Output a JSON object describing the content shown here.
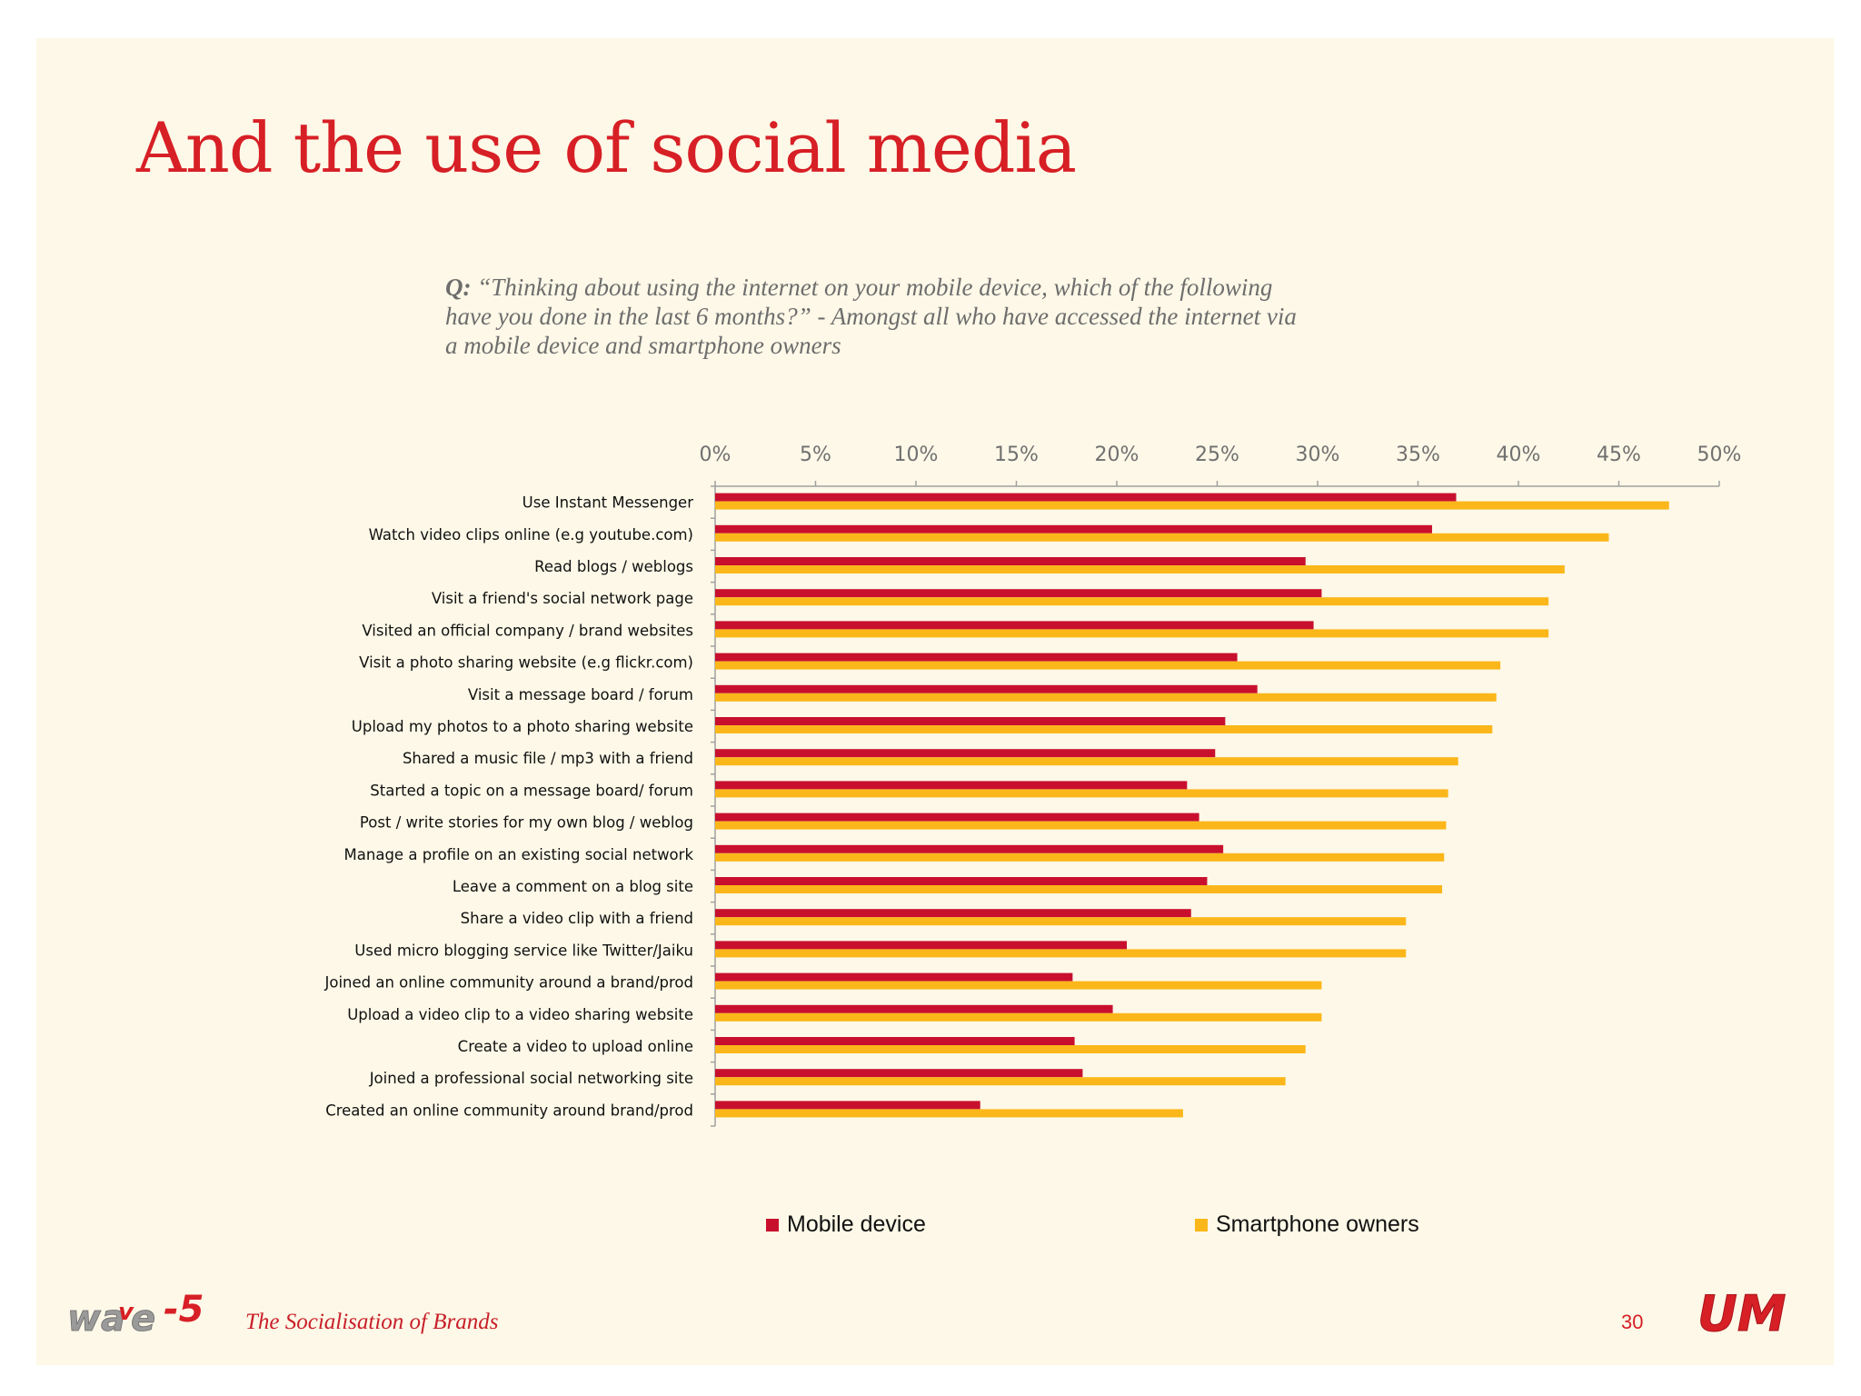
{
  "slide": {
    "title": "And the use of social media",
    "question_prefix": "Q:",
    "question_text": "“Thinking about using the internet on your mobile device, which of the following have you done in the last 6 months?” - Amongst all who have accessed the internet via a mobile device and smartphone owners",
    "footer_text": "The Socialisation of Brands",
    "page_number": "30",
    "logo_left": "wave 5",
    "logo_right": "UM"
  },
  "colors": {
    "background": "#fdf8e7",
    "title": "#d71f26",
    "mobile": "#c8102e",
    "smartphone": "#fbb71a"
  },
  "chart_data": {
    "type": "bar",
    "orientation": "horizontal",
    "xlim": [
      0,
      50
    ],
    "ticks": [
      "0%",
      "5%",
      "10%",
      "15%",
      "20%",
      "25%",
      "30%",
      "35%",
      "40%",
      "45%",
      "50%"
    ],
    "tick_values": [
      0,
      5,
      10,
      15,
      20,
      25,
      30,
      35,
      40,
      45,
      50
    ],
    "grid": false,
    "legend_position": "bottom",
    "categories": [
      "Use Instant Messenger",
      "Watch video clips online (e.g youtube.com)",
      "Read blogs / weblogs",
      "Visit a friend's social network page",
      "Visited an official company / brand websites",
      "Visit a photo sharing website (e.g flickr.com)",
      "Visit a message board / forum",
      "Upload my photos to a photo sharing website",
      "Shared a music file / mp3 with a friend",
      "Started a topic on a message board/ forum",
      "Post / write stories for my own blog / weblog",
      "Manage a profile on an existing social network",
      "Leave a comment on a blog site",
      "Share a video clip with a friend",
      "Used micro blogging service like Twitter/Jaiku",
      "Joined an online community around a brand/prod",
      "Upload a video clip to a video sharing website",
      "Create a video to upload online",
      "Joined a professional social networking site",
      "Created an online community around brand/prod"
    ],
    "series": [
      {
        "name": "Mobile device",
        "color": "#c8102e",
        "values": [
          36.9,
          35.7,
          29.4,
          30.2,
          29.8,
          26.0,
          27.0,
          25.4,
          24.9,
          23.5,
          24.1,
          25.3,
          24.5,
          23.7,
          20.5,
          17.8,
          19.8,
          17.9,
          18.3,
          13.2
        ]
      },
      {
        "name": "Smartphone owners",
        "color": "#fbb71a",
        "values": [
          47.5,
          44.5,
          42.3,
          41.5,
          41.5,
          39.1,
          38.9,
          38.7,
          37.0,
          36.5,
          36.4,
          36.3,
          36.2,
          34.4,
          34.4,
          30.2,
          30.2,
          29.4,
          28.4,
          23.3
        ]
      }
    ]
  }
}
